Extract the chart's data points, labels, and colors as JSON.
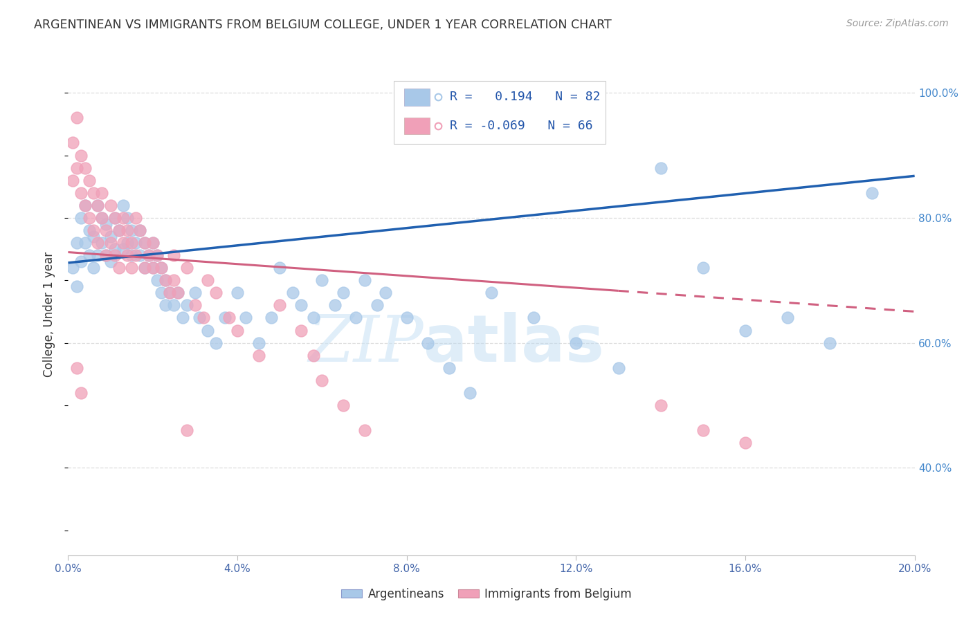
{
  "title": "ARGENTINEAN VS IMMIGRANTS FROM BELGIUM COLLEGE, UNDER 1 YEAR CORRELATION CHART",
  "source": "Source: ZipAtlas.com",
  "ylabel": "College, Under 1 year",
  "legend_label1": "Argentineans",
  "legend_label2": "Immigrants from Belgium",
  "r1": 0.194,
  "n1": 82,
  "r2": -0.069,
  "n2": 66,
  "color_blue": "#a8c8e8",
  "color_pink": "#f0a0b8",
  "trendline_blue": "#2060b0",
  "trendline_pink": "#d06080",
  "watermark_zip": "ZIP",
  "watermark_atlas": "atlas",
  "xlim": [
    0.0,
    0.2
  ],
  "ylim": [
    0.26,
    1.03
  ],
  "xticks": [
    0.0,
    0.04,
    0.08,
    0.12,
    0.16,
    0.2
  ],
  "yticks_right": [
    0.4,
    0.6,
    0.8,
    1.0
  ],
  "background_color": "#ffffff",
  "grid_color": "#dddddd",
  "blue_scatter": [
    [
      0.001,
      0.72
    ],
    [
      0.002,
      0.69
    ],
    [
      0.002,
      0.76
    ],
    [
      0.003,
      0.73
    ],
    [
      0.003,
      0.8
    ],
    [
      0.004,
      0.76
    ],
    [
      0.004,
      0.82
    ],
    [
      0.005,
      0.74
    ],
    [
      0.005,
      0.78
    ],
    [
      0.006,
      0.72
    ],
    [
      0.006,
      0.77
    ],
    [
      0.007,
      0.74
    ],
    [
      0.007,
      0.82
    ],
    [
      0.008,
      0.76
    ],
    [
      0.008,
      0.8
    ],
    [
      0.009,
      0.74
    ],
    [
      0.009,
      0.79
    ],
    [
      0.01,
      0.73
    ],
    [
      0.01,
      0.77
    ],
    [
      0.011,
      0.75
    ],
    [
      0.011,
      0.8
    ],
    [
      0.012,
      0.78
    ],
    [
      0.013,
      0.75
    ],
    [
      0.013,
      0.82
    ],
    [
      0.014,
      0.76
    ],
    [
      0.014,
      0.8
    ],
    [
      0.015,
      0.74
    ],
    [
      0.015,
      0.78
    ],
    [
      0.016,
      0.76
    ],
    [
      0.017,
      0.74
    ],
    [
      0.017,
      0.78
    ],
    [
      0.018,
      0.72
    ],
    [
      0.018,
      0.76
    ],
    [
      0.019,
      0.74
    ],
    [
      0.02,
      0.72
    ],
    [
      0.02,
      0.76
    ],
    [
      0.021,
      0.7
    ],
    [
      0.021,
      0.74
    ],
    [
      0.022,
      0.68
    ],
    [
      0.022,
      0.72
    ],
    [
      0.023,
      0.66
    ],
    [
      0.023,
      0.7
    ],
    [
      0.024,
      0.68
    ],
    [
      0.025,
      0.66
    ],
    [
      0.026,
      0.68
    ],
    [
      0.027,
      0.64
    ],
    [
      0.028,
      0.66
    ],
    [
      0.03,
      0.68
    ],
    [
      0.031,
      0.64
    ],
    [
      0.033,
      0.62
    ],
    [
      0.035,
      0.6
    ],
    [
      0.037,
      0.64
    ],
    [
      0.04,
      0.68
    ],
    [
      0.042,
      0.64
    ],
    [
      0.045,
      0.6
    ],
    [
      0.048,
      0.64
    ],
    [
      0.05,
      0.72
    ],
    [
      0.053,
      0.68
    ],
    [
      0.055,
      0.66
    ],
    [
      0.058,
      0.64
    ],
    [
      0.06,
      0.7
    ],
    [
      0.063,
      0.66
    ],
    [
      0.065,
      0.68
    ],
    [
      0.068,
      0.64
    ],
    [
      0.07,
      0.7
    ],
    [
      0.073,
      0.66
    ],
    [
      0.075,
      0.68
    ],
    [
      0.08,
      0.64
    ],
    [
      0.085,
      0.6
    ],
    [
      0.09,
      0.56
    ],
    [
      0.095,
      0.52
    ],
    [
      0.1,
      0.68
    ],
    [
      0.11,
      0.64
    ],
    [
      0.12,
      0.6
    ],
    [
      0.13,
      0.56
    ],
    [
      0.14,
      0.88
    ],
    [
      0.15,
      0.72
    ],
    [
      0.16,
      0.62
    ],
    [
      0.17,
      0.64
    ],
    [
      0.18,
      0.6
    ],
    [
      0.19,
      0.84
    ]
  ],
  "pink_scatter": [
    [
      0.001,
      0.92
    ],
    [
      0.001,
      0.86
    ],
    [
      0.002,
      0.96
    ],
    [
      0.002,
      0.88
    ],
    [
      0.003,
      0.9
    ],
    [
      0.003,
      0.84
    ],
    [
      0.004,
      0.88
    ],
    [
      0.004,
      0.82
    ],
    [
      0.005,
      0.86
    ],
    [
      0.005,
      0.8
    ],
    [
      0.006,
      0.84
    ],
    [
      0.006,
      0.78
    ],
    [
      0.007,
      0.82
    ],
    [
      0.007,
      0.76
    ],
    [
      0.008,
      0.8
    ],
    [
      0.008,
      0.84
    ],
    [
      0.009,
      0.78
    ],
    [
      0.009,
      0.74
    ],
    [
      0.01,
      0.82
    ],
    [
      0.01,
      0.76
    ],
    [
      0.011,
      0.8
    ],
    [
      0.011,
      0.74
    ],
    [
      0.012,
      0.78
    ],
    [
      0.012,
      0.72
    ],
    [
      0.013,
      0.8
    ],
    [
      0.013,
      0.76
    ],
    [
      0.014,
      0.78
    ],
    [
      0.014,
      0.74
    ],
    [
      0.015,
      0.76
    ],
    [
      0.015,
      0.72
    ],
    [
      0.016,
      0.8
    ],
    [
      0.016,
      0.74
    ],
    [
      0.017,
      0.78
    ],
    [
      0.018,
      0.76
    ],
    [
      0.018,
      0.72
    ],
    [
      0.019,
      0.74
    ],
    [
      0.02,
      0.72
    ],
    [
      0.02,
      0.76
    ],
    [
      0.021,
      0.74
    ],
    [
      0.022,
      0.72
    ],
    [
      0.023,
      0.7
    ],
    [
      0.024,
      0.68
    ],
    [
      0.025,
      0.74
    ],
    [
      0.025,
      0.7
    ],
    [
      0.026,
      0.68
    ],
    [
      0.028,
      0.72
    ],
    [
      0.03,
      0.66
    ],
    [
      0.032,
      0.64
    ],
    [
      0.033,
      0.7
    ],
    [
      0.035,
      0.68
    ],
    [
      0.038,
      0.64
    ],
    [
      0.04,
      0.62
    ],
    [
      0.045,
      0.58
    ],
    [
      0.05,
      0.66
    ],
    [
      0.055,
      0.62
    ],
    [
      0.058,
      0.58
    ],
    [
      0.06,
      0.54
    ],
    [
      0.065,
      0.5
    ],
    [
      0.07,
      0.46
    ],
    [
      0.14,
      0.5
    ],
    [
      0.15,
      0.46
    ],
    [
      0.16,
      0.44
    ],
    [
      0.002,
      0.56
    ],
    [
      0.003,
      0.52
    ],
    [
      0.028,
      0.46
    ]
  ]
}
